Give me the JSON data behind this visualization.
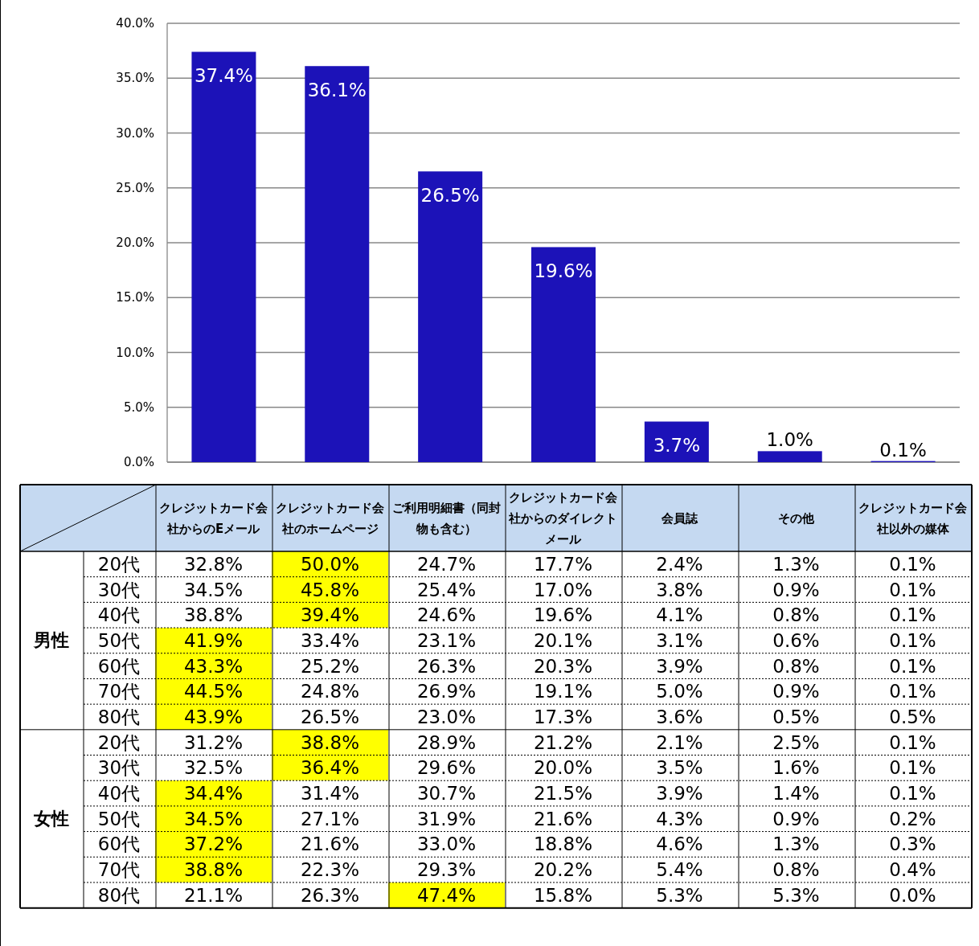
{
  "chart_data": [
    {
      "type": "bar",
      "categories": [
        null,
        null,
        null,
        null,
        null,
        null,
        null
      ],
      "values": [
        37.4,
        36.1,
        26.5,
        19.6,
        3.7,
        1.0,
        0.1
      ],
      "value_labels": [
        "37.4%",
        "36.1%",
        "26.5%",
        "19.6%",
        "3.7%",
        "1.0%",
        "0.1%"
      ],
      "color": "#1c12b8",
      "ylim": [
        0,
        40
      ],
      "yticks": [
        {
          "value": 0,
          "label": "0.0%"
        },
        {
          "value": 5,
          "label": "5.0%"
        },
        {
          "value": 10,
          "label": "10.0%"
        },
        {
          "value": 15,
          "label": "15.0%"
        },
        {
          "value": 20,
          "label": "20.0%"
        },
        {
          "value": 25,
          "label": "25.0%"
        },
        {
          "value": 30,
          "label": "30.0%"
        },
        {
          "value": 35,
          "label": "35.0%"
        },
        {
          "value": 40,
          "label": "40.0%"
        }
      ],
      "grid": "y"
    },
    {
      "type": "heatmap",
      "categories": [
        "クレジットカード会社からのEメール",
        "クレジットカード会社のホームページ",
        "ご利用明細書（同封物も含む）",
        "クレジットカード会社からのダイレクトメール",
        "会員誌",
        "その他",
        "クレジットカード会社以外の媒体"
      ],
      "y_categories": [
        "20代",
        "30代",
        "40代",
        "50代",
        "60代",
        "70代",
        "80代",
        "20代",
        "30代",
        "40代",
        "50代",
        "60代",
        "70代",
        "80代"
      ],
      "y2_categories": [
        null,
        null,
        null,
        "男性",
        null,
        null,
        null,
        null,
        null,
        null,
        "女性",
        null,
        null,
        null
      ],
      "colors": [
        "#ffffff",
        "#ffff00"
      ],
      "cells": [
        [
          32.8,
          50.0,
          24.7,
          17.7,
          2.4,
          1.3,
          0.1
        ],
        [
          34.5,
          45.8,
          25.4,
          17.0,
          3.8,
          0.9,
          0.1
        ],
        [
          38.8,
          39.4,
          24.6,
          19.6,
          4.1,
          0.8,
          0.1
        ],
        [
          41.9,
          33.4,
          23.1,
          20.1,
          3.1,
          0.6,
          0.1
        ],
        [
          43.3,
          25.2,
          26.3,
          20.3,
          3.9,
          0.8,
          0.1
        ],
        [
          44.5,
          24.8,
          26.9,
          19.1,
          5.0,
          0.9,
          0.1
        ],
        [
          43.9,
          26.5,
          23.0,
          17.3,
          3.6,
          0.5,
          0.5
        ],
        [
          31.2,
          38.8,
          28.9,
          21.2,
          2.1,
          2.5,
          0.1
        ],
        [
          32.5,
          36.4,
          29.6,
          20.0,
          3.5,
          1.6,
          0.1
        ],
        [
          34.4,
          31.4,
          30.7,
          21.5,
          3.9,
          1.4,
          0.1
        ],
        [
          34.5,
          27.1,
          31.9,
          21.6,
          4.3,
          0.9,
          0.2
        ],
        [
          37.2,
          21.6,
          33.0,
          18.8,
          4.6,
          1.3,
          0.3
        ],
        [
          38.8,
          22.3,
          29.3,
          20.2,
          5.4,
          0.8,
          0.4
        ],
        [
          21.1,
          26.3,
          47.4,
          15.8,
          5.3,
          5.3,
          0.0
        ]
      ],
      "cell_labels": [
        [
          "32.8%",
          "50.0%",
          "24.7%",
          "17.7%",
          "2.4%",
          "1.3%",
          "0.1%"
        ],
        [
          "34.5%",
          "45.8%",
          "25.4%",
          "17.0%",
          "3.8%",
          "0.9%",
          "0.1%"
        ],
        [
          "38.8%",
          "39.4%",
          "24.6%",
          "19.6%",
          "4.1%",
          "0.8%",
          "0.1%"
        ],
        [
          "41.9%",
          "33.4%",
          "23.1%",
          "20.1%",
          "3.1%",
          "0.6%",
          "0.1%"
        ],
        [
          "43.3%",
          "25.2%",
          "26.3%",
          "20.3%",
          "3.9%",
          "0.8%",
          "0.1%"
        ],
        [
          "44.5%",
          "24.8%",
          "26.9%",
          "19.1%",
          "5.0%",
          "0.9%",
          "0.1%"
        ],
        [
          "43.9%",
          "26.5%",
          "23.0%",
          "17.3%",
          "3.6%",
          "0.5%",
          "0.5%"
        ],
        [
          "31.2%",
          "38.8%",
          "28.9%",
          "21.2%",
          "2.1%",
          "2.5%",
          "0.1%"
        ],
        [
          "32.5%",
          "36.4%",
          "29.6%",
          "20.0%",
          "3.5%",
          "1.6%",
          "0.1%"
        ],
        [
          "34.4%",
          "31.4%",
          "30.7%",
          "21.5%",
          "3.9%",
          "1.4%",
          "0.1%"
        ],
        [
          "34.5%",
          "27.1%",
          "31.9%",
          "21.6%",
          "4.3%",
          "0.9%",
          "0.2%"
        ],
        [
          "37.2%",
          "21.6%",
          "33.0%",
          "18.8%",
          "4.6%",
          "1.3%",
          "0.3%"
        ],
        [
          "38.8%",
          "22.3%",
          "29.3%",
          "20.2%",
          "5.4%",
          "0.8%",
          "0.4%"
        ],
        [
          "21.1%",
          "26.3%",
          "47.4%",
          "15.8%",
          "5.3%",
          "5.3%",
          "0.0%"
        ]
      ]
    }
  ]
}
